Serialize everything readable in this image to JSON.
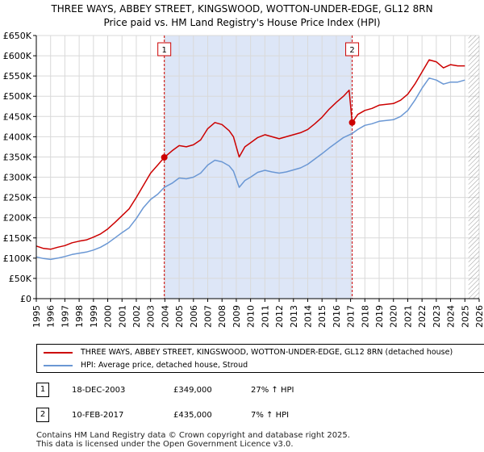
{
  "chart_data": {
    "type": "line",
    "title": "THREE WAYS, ABBEY STREET, KINGSWOOD, WOTTON-UNDER-EDGE, GL12 8RN",
    "subtitle": "Price paid vs. HM Land Registry's House Price Index (HPI)",
    "xlim": [
      1995,
      2026
    ],
    "ylim": [
      0,
      650000
    ],
    "x_ticks": [
      1995,
      1996,
      1997,
      1998,
      1999,
      2000,
      2001,
      2002,
      2003,
      2004,
      2005,
      2006,
      2007,
      2008,
      2009,
      2010,
      2011,
      2012,
      2013,
      2014,
      2015,
      2016,
      2017,
      2018,
      2019,
      2020,
      2021,
      2022,
      2023,
      2024,
      2025,
      2026
    ],
    "y_ticks": [
      {
        "value": 0,
        "label": "£0"
      },
      {
        "value": 50000,
        "label": "£50K"
      },
      {
        "value": 100000,
        "label": "£100K"
      },
      {
        "value": 150000,
        "label": "£150K"
      },
      {
        "value": 200000,
        "label": "£200K"
      },
      {
        "value": 250000,
        "label": "£250K"
      },
      {
        "value": 300000,
        "label": "£300K"
      },
      {
        "value": 350000,
        "label": "£350K"
      },
      {
        "value": 400000,
        "label": "£400K"
      },
      {
        "value": 450000,
        "label": "£450K"
      },
      {
        "value": 500000,
        "label": "£500K"
      },
      {
        "value": 550000,
        "label": "£550K"
      },
      {
        "value": 600000,
        "label": "£600K"
      },
      {
        "value": 650000,
        "label": "£650K"
      }
    ],
    "shaded_region": {
      "from": 2003.96,
      "to": 2017.11,
      "color": "#dde6f7"
    },
    "hatched_from": 2025.25,
    "series": [
      {
        "name": "THREE WAYS, ABBEY STREET, KINGSWOOD, WOTTON-UNDER-EDGE, GL12 8RN (detached house)",
        "color": "#cc0000",
        "points": [
          [
            1995.0,
            130000
          ],
          [
            1995.5,
            124000
          ],
          [
            1996.0,
            122000
          ],
          [
            1996.5,
            127000
          ],
          [
            1997.0,
            131000
          ],
          [
            1997.5,
            138000
          ],
          [
            1998.0,
            142000
          ],
          [
            1998.5,
            145000
          ],
          [
            1999.0,
            152000
          ],
          [
            1999.5,
            160000
          ],
          [
            2000.0,
            172000
          ],
          [
            2000.5,
            188000
          ],
          [
            2001.0,
            205000
          ],
          [
            2001.5,
            222000
          ],
          [
            2002.0,
            250000
          ],
          [
            2002.5,
            280000
          ],
          [
            2003.0,
            310000
          ],
          [
            2003.5,
            330000
          ],
          [
            2003.96,
            349000
          ],
          [
            2004.5,
            365000
          ],
          [
            2005.0,
            378000
          ],
          [
            2005.5,
            375000
          ],
          [
            2006.0,
            380000
          ],
          [
            2006.5,
            392000
          ],
          [
            2007.0,
            420000
          ],
          [
            2007.5,
            435000
          ],
          [
            2008.0,
            430000
          ],
          [
            2008.5,
            415000
          ],
          [
            2008.8,
            400000
          ],
          [
            2009.2,
            350000
          ],
          [
            2009.6,
            375000
          ],
          [
            2010.0,
            385000
          ],
          [
            2010.5,
            398000
          ],
          [
            2011.0,
            405000
          ],
          [
            2011.5,
            400000
          ],
          [
            2012.0,
            395000
          ],
          [
            2012.5,
            400000
          ],
          [
            2013.0,
            405000
          ],
          [
            2013.5,
            410000
          ],
          [
            2014.0,
            418000
          ],
          [
            2014.5,
            432000
          ],
          [
            2015.0,
            448000
          ],
          [
            2015.5,
            468000
          ],
          [
            2016.0,
            485000
          ],
          [
            2016.5,
            500000
          ],
          [
            2016.9,
            515000
          ],
          [
            2017.11,
            435000
          ],
          [
            2017.5,
            455000
          ],
          [
            2018.0,
            465000
          ],
          [
            2018.5,
            470000
          ],
          [
            2019.0,
            478000
          ],
          [
            2019.5,
            480000
          ],
          [
            2020.0,
            482000
          ],
          [
            2020.5,
            490000
          ],
          [
            2021.0,
            505000
          ],
          [
            2021.5,
            530000
          ],
          [
            2022.0,
            560000
          ],
          [
            2022.5,
            590000
          ],
          [
            2023.0,
            585000
          ],
          [
            2023.5,
            570000
          ],
          [
            2024.0,
            578000
          ],
          [
            2024.5,
            575000
          ],
          [
            2025.0,
            575000
          ]
        ]
      },
      {
        "name": "HPI: Average price, detached house, Stroud",
        "color": "#6a97d4",
        "points": [
          [
            1995.0,
            103000
          ],
          [
            1995.5,
            99000
          ],
          [
            1996.0,
            97000
          ],
          [
            1996.5,
            100000
          ],
          [
            1997.0,
            104000
          ],
          [
            1997.5,
            109000
          ],
          [
            1998.0,
            112000
          ],
          [
            1998.5,
            115000
          ],
          [
            1999.0,
            120000
          ],
          [
            1999.5,
            127000
          ],
          [
            2000.0,
            137000
          ],
          [
            2000.5,
            150000
          ],
          [
            2001.0,
            163000
          ],
          [
            2001.5,
            175000
          ],
          [
            2002.0,
            198000
          ],
          [
            2002.5,
            225000
          ],
          [
            2003.0,
            245000
          ],
          [
            2003.5,
            258000
          ],
          [
            2003.96,
            275000
          ],
          [
            2004.5,
            285000
          ],
          [
            2005.0,
            298000
          ],
          [
            2005.5,
            296000
          ],
          [
            2006.0,
            300000
          ],
          [
            2006.5,
            310000
          ],
          [
            2007.0,
            330000
          ],
          [
            2007.5,
            342000
          ],
          [
            2008.0,
            338000
          ],
          [
            2008.5,
            328000
          ],
          [
            2008.8,
            315000
          ],
          [
            2009.2,
            275000
          ],
          [
            2009.6,
            292000
          ],
          [
            2010.0,
            300000
          ],
          [
            2010.5,
            312000
          ],
          [
            2011.0,
            317000
          ],
          [
            2011.5,
            313000
          ],
          [
            2012.0,
            310000
          ],
          [
            2012.5,
            313000
          ],
          [
            2013.0,
            318000
          ],
          [
            2013.5,
            323000
          ],
          [
            2014.0,
            332000
          ],
          [
            2014.5,
            345000
          ],
          [
            2015.0,
            358000
          ],
          [
            2015.5,
            372000
          ],
          [
            2016.0,
            385000
          ],
          [
            2016.5,
            398000
          ],
          [
            2017.11,
            408000
          ],
          [
            2017.5,
            418000
          ],
          [
            2018.0,
            428000
          ],
          [
            2018.5,
            432000
          ],
          [
            2019.0,
            438000
          ],
          [
            2019.5,
            440000
          ],
          [
            2020.0,
            442000
          ],
          [
            2020.5,
            450000
          ],
          [
            2021.0,
            465000
          ],
          [
            2021.5,
            490000
          ],
          [
            2022.0,
            520000
          ],
          [
            2022.5,
            545000
          ],
          [
            2023.0,
            540000
          ],
          [
            2023.5,
            530000
          ],
          [
            2024.0,
            535000
          ],
          [
            2024.5,
            535000
          ],
          [
            2025.0,
            540000
          ]
        ]
      }
    ],
    "markers": [
      {
        "label": "1",
        "x": 2003.96,
        "y": 349000
      },
      {
        "label": "2",
        "x": 2017.11,
        "y": 435000
      }
    ]
  },
  "legend": {
    "property_label": "THREE WAYS, ABBEY STREET, KINGSWOOD, WOTTON-UNDER-EDGE, GL12 8RN (detached house)",
    "hpi_label": "HPI: Average price, detached house, Stroud",
    "property_color": "#cc0000",
    "hpi_color": "#6a97d4"
  },
  "transactions": [
    {
      "num": "1",
      "date": "18-DEC-2003",
      "price": "£349,000",
      "hpi": "27% ↑ HPI"
    },
    {
      "num": "2",
      "date": "10-FEB-2017",
      "price": "£435,000",
      "hpi": "7% ↑ HPI"
    }
  ],
  "footer": {
    "line1": "Contains HM Land Registry data © Crown copyright and database right 2025.",
    "line2": "This data is licensed under the Open Government Licence v3.0."
  }
}
